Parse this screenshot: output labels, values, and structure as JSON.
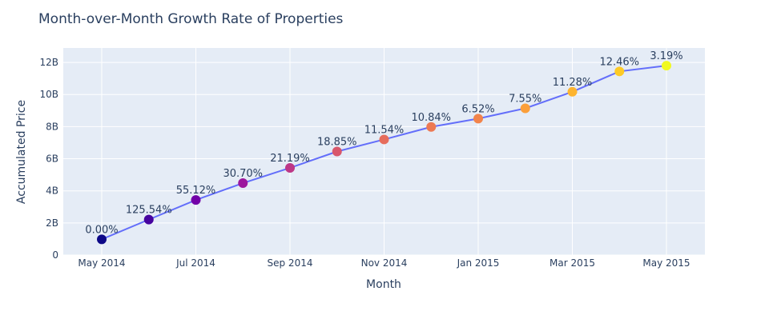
{
  "chart_data": {
    "type": "line",
    "title": "Month-over-Month Growth Rate of Properties",
    "xlabel": "Month",
    "ylabel": "Accumulated Price",
    "x": [
      "2014-05",
      "2014-06",
      "2014-07",
      "2014-08",
      "2014-09",
      "2014-10",
      "2014-11",
      "2014-12",
      "2015-01",
      "2015-02",
      "2015-03",
      "2015-04",
      "2015-05"
    ],
    "x_tick_labels": [
      {
        "x": "2014-05",
        "label": "May 2014"
      },
      {
        "x": "2014-07",
        "label": "Jul 2014"
      },
      {
        "x": "2014-09",
        "label": "Sep 2014"
      },
      {
        "x": "2014-11",
        "label": "Nov 2014"
      },
      {
        "x": "2015-01",
        "label": "Jan 2015"
      },
      {
        "x": "2015-03",
        "label": "Mar 2015"
      },
      {
        "x": "2015-05",
        "label": "May 2015"
      }
    ],
    "y_tick_values": [
      0,
      2000000000,
      4000000000,
      6000000000,
      8000000000,
      10000000000,
      12000000000
    ],
    "y_tick_labels": [
      "0",
      "2B",
      "4B",
      "6B",
      "8B",
      "10B",
      "12B"
    ],
    "ylim": [
      0,
      12900000000
    ],
    "series": [
      {
        "values": [
          980000000,
          2210000000,
          3430000000,
          4480000000,
          5430000000,
          6450000000,
          7200000000,
          7980000000,
          8500000000,
          9140000000,
          10170000000,
          11440000000,
          11800000000
        ],
        "data_labels": [
          "0.00%",
          "125.54%",
          "55.12%",
          "30.70%",
          "21.19%",
          "18.85%",
          "11.54%",
          "10.84%",
          "6.52%",
          "7.55%",
          "11.28%",
          "12.46%",
          "3.19%"
        ],
        "line_color": "#636efa",
        "marker_colors": [
          "#0d0887",
          "#46039f",
          "#7201a8",
          "#9c179e",
          "#bd3786",
          "#d8576b",
          "#e66c5c",
          "#ed7953",
          "#f2844b",
          "#fb9f3a",
          "#fdb42f",
          "#fdca26",
          "#f0f921"
        ]
      }
    ],
    "grid": true,
    "plot_background": "#e5ecf6"
  }
}
